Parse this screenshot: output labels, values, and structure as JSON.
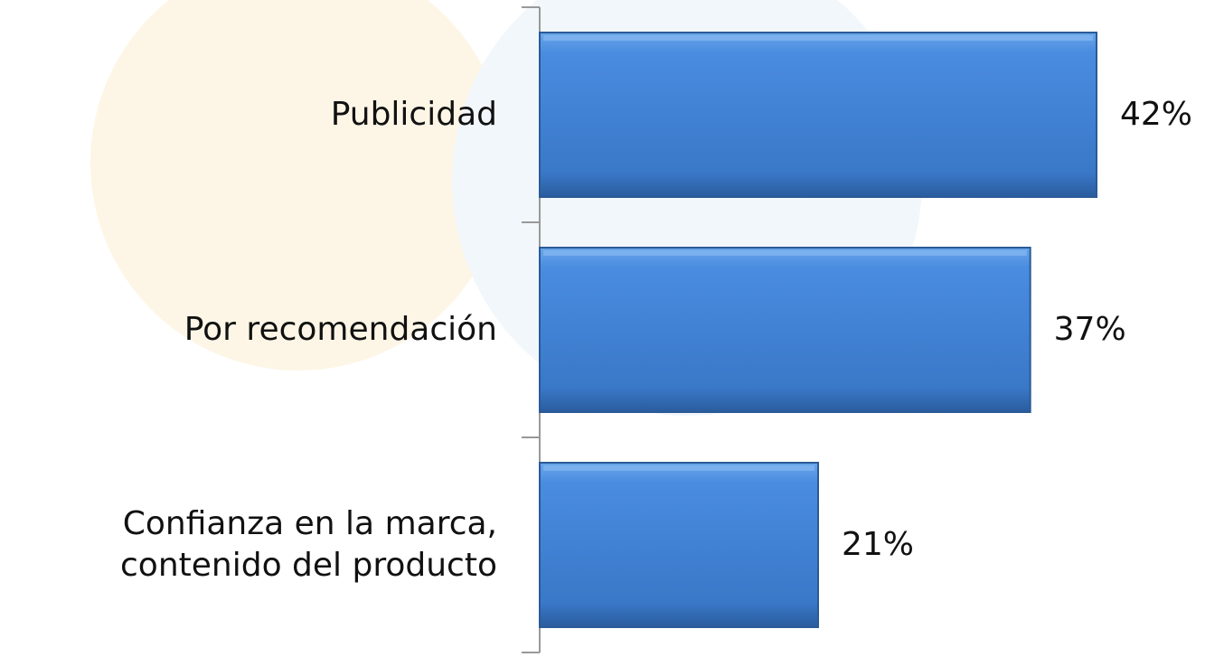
{
  "chart_data": {
    "type": "bar",
    "orientation": "horizontal",
    "categories": [
      "Publicidad",
      "Por recomendación",
      "Confianza en la marca, contenido del producto"
    ],
    "values": [
      42,
      37,
      21
    ],
    "value_labels": [
      "42%",
      "37%",
      "21%"
    ],
    "color": "#3f7fd0"
  }
}
